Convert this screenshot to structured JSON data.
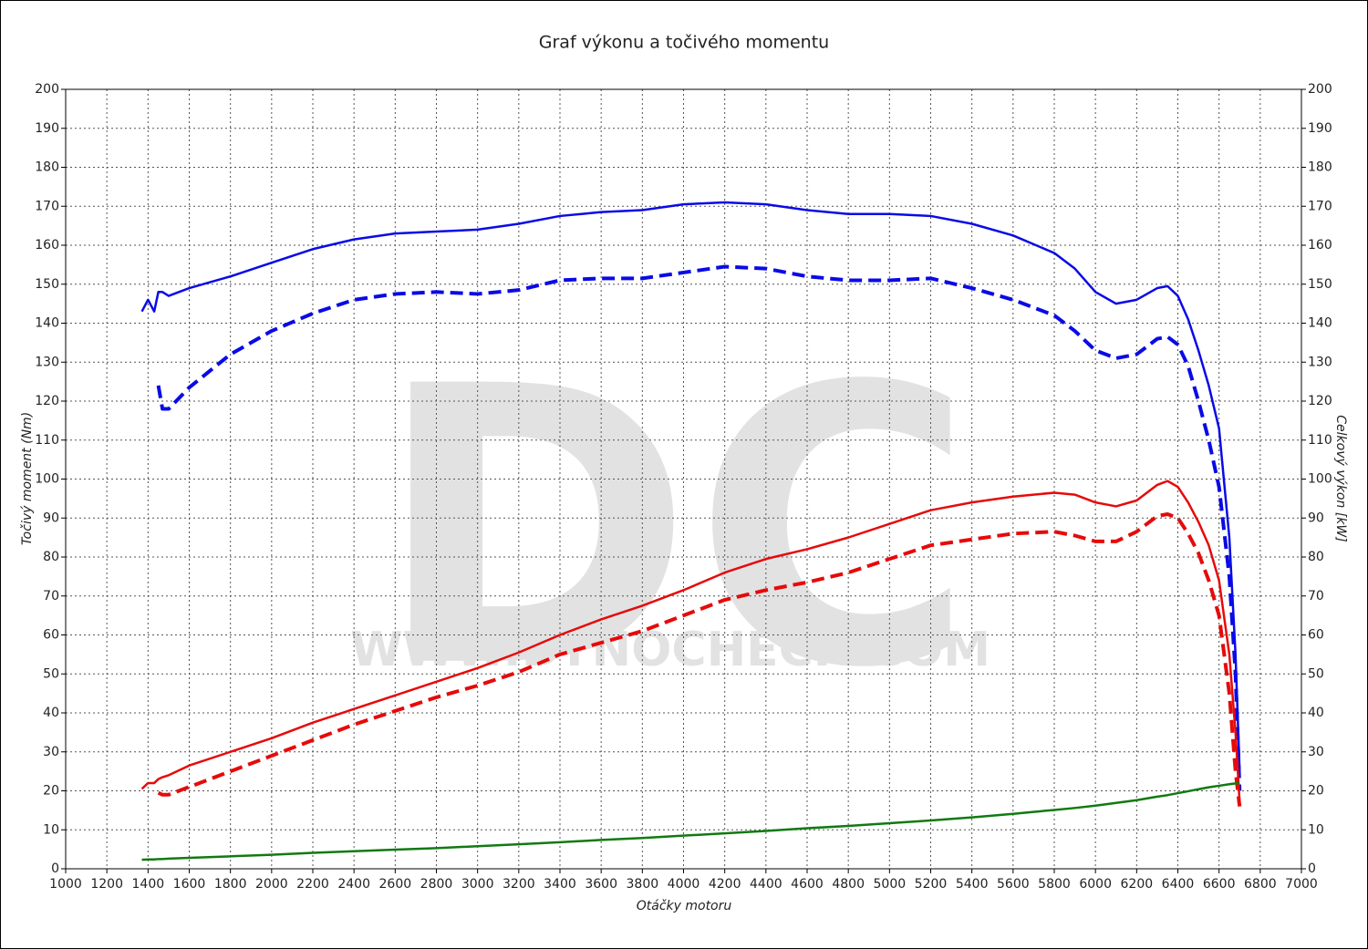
{
  "chart_data": {
    "type": "line",
    "title": "Graf výkonu a točivého momentu",
    "x_label": "Otáčky motoru",
    "y_label": "Točivý moment (Nm)",
    "y2_label": "Celkový výkon [kW]",
    "watermark": "DC",
    "watermark_url": "WWW.DYNOCHECK.COM",
    "grid": true,
    "xlim": [
      1000,
      7000
    ],
    "xticks": [
      1000,
      1200,
      1400,
      1600,
      1800,
      2000,
      2200,
      2400,
      2600,
      2800,
      3000,
      3200,
      3400,
      3600,
      3800,
      4000,
      4200,
      4400,
      4600,
      4800,
      5000,
      5200,
      5400,
      5600,
      5800,
      6000,
      6200,
      6400,
      6600,
      6800,
      7000
    ],
    "ylim": [
      0,
      200
    ],
    "yticks": [
      0,
      10,
      20,
      30,
      40,
      50,
      60,
      70,
      80,
      90,
      100,
      110,
      120,
      130,
      140,
      150,
      160,
      170,
      180,
      190,
      200
    ],
    "y2lim": [
      0,
      200
    ],
    "y2ticks": [
      0,
      10,
      20,
      30,
      40,
      50,
      60,
      70,
      80,
      90,
      100,
      110,
      120,
      130,
      140,
      150,
      160,
      170,
      180,
      190,
      200
    ],
    "x": [
      1370,
      1400,
      1430,
      1450,
      1470,
      1500,
      1600,
      1800,
      2000,
      2200,
      2400,
      2600,
      2800,
      3000,
      3200,
      3400,
      3600,
      3800,
      4000,
      4200,
      4400,
      4600,
      4800,
      5000,
      5200,
      5400,
      5600,
      5800,
      5900,
      6000,
      6100,
      6200,
      6300,
      6350,
      6400,
      6450,
      6500,
      6550,
      6600,
      6650,
      6680,
      6700
    ],
    "series": [
      {
        "color": "#0a0ae6",
        "dash": false,
        "values": [
          143,
          146,
          143,
          148,
          148,
          147,
          149,
          152,
          155.5,
          159,
          161.5,
          163,
          163.5,
          164,
          165.5,
          167.5,
          168.5,
          169,
          170.5,
          171,
          170.5,
          169,
          168,
          168,
          167.5,
          165.5,
          162.5,
          158,
          154,
          148,
          145,
          146,
          149,
          149.5,
          147,
          141,
          133,
          124,
          113,
          85,
          55,
          25
        ]
      },
      {
        "color": "#0a0ae6",
        "dash": true,
        "values": [
          null,
          null,
          null,
          124,
          118,
          118,
          123.5,
          132,
          138,
          142.5,
          146,
          147.5,
          148,
          147.5,
          148.5,
          151,
          151.5,
          151.5,
          153,
          154.5,
          154,
          152,
          151,
          151,
          151.5,
          149,
          146,
          142,
          138,
          133,
          131,
          132,
          136,
          136.5,
          134.5,
          129,
          120,
          110,
          98,
          75,
          50,
          20
        ]
      },
      {
        "color": "#e60a0a",
        "dash": false,
        "axis": "y2",
        "values": [
          20.5,
          22,
          22,
          23,
          23.5,
          24,
          26.5,
          30,
          33.5,
          37.5,
          41,
          44.5,
          48,
          51.5,
          55.5,
          60,
          64,
          67.5,
          71.5,
          76,
          79.5,
          82,
          85,
          88.5,
          92,
          94,
          95.5,
          96.5,
          96,
          94,
          93,
          94.5,
          98.5,
          99.5,
          98,
          94,
          89,
          83,
          74,
          55,
          35,
          17
        ]
      },
      {
        "color": "#e60a0a",
        "dash": true,
        "axis": "y2",
        "values": [
          null,
          null,
          null,
          19.5,
          19,
          19,
          21,
          25,
          29,
          33,
          37,
          40.5,
          44,
          47,
          50.5,
          55,
          58,
          61,
          65,
          69,
          71.5,
          73.5,
          76,
          79.5,
          83,
          84.5,
          86,
          86.5,
          85.5,
          84,
          84,
          86.5,
          90.5,
          91,
          90,
          86,
          81,
          74,
          65,
          45,
          25,
          16
        ]
      },
      {
        "color": "#117a11",
        "dash": false,
        "axis": "y2",
        "values": [
          2.3,
          2.4,
          2.4,
          2.5,
          2.5,
          2.6,
          2.8,
          3.2,
          3.6,
          4.1,
          4.5,
          4.9,
          5.3,
          5.8,
          6.3,
          6.8,
          7.4,
          7.9,
          8.5,
          9.1,
          9.7,
          10.4,
          11,
          11.7,
          12.4,
          13.2,
          14.1,
          15.1,
          15.6,
          16.2,
          16.9,
          17.6,
          18.5,
          18.9,
          19.4,
          19.9,
          20.4,
          20.9,
          21.3,
          21.7,
          21.9,
          22
        ]
      }
    ]
  }
}
